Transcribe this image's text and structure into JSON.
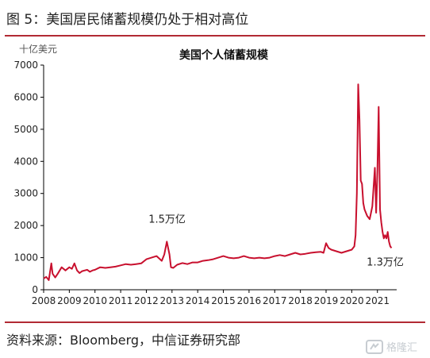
{
  "header": {
    "figure_title": "图 5：美国居民储蓄规模仍处于相对高位"
  },
  "footer": {
    "source": "资料来源：Bloomberg，中信证券研究部",
    "watermark_text": "格隆汇"
  },
  "colors": {
    "accent": "#b22a33",
    "series": "#c8102e",
    "axis": "#000000",
    "text": "#222222"
  },
  "chart_data": {
    "type": "line",
    "title": "美国个人储蓄规模",
    "ylabel": "十亿美元",
    "xlabel": "",
    "ylim": [
      0,
      7000
    ],
    "xlim": [
      2008.0,
      2021.75
    ],
    "grid": false,
    "legend": "none",
    "y_ticks": [
      "0",
      "1000",
      "2000",
      "3000",
      "4000",
      "5000",
      "6000",
      "7000"
    ],
    "x_ticks": [
      "2008",
      "2009",
      "2010",
      "2011",
      "2012",
      "2013",
      "2014",
      "2015",
      "2016",
      "2017",
      "2018",
      "2019",
      "2020",
      "2021"
    ],
    "annotations": [
      {
        "text": "1.5万亿",
        "x": 2012.9,
        "y": 1500
      },
      {
        "text": "1.3万亿",
        "x": 2021.55,
        "y": 1300
      }
    ],
    "series": [
      {
        "x": [
          2008.0,
          2008.1,
          2008.2,
          2008.3,
          2008.35,
          2008.45,
          2008.55,
          2008.7,
          2008.85,
          2009.0,
          2009.1,
          2009.2,
          2009.3,
          2009.4,
          2009.5,
          2009.6,
          2009.7,
          2009.8,
          2009.9,
          2010.0,
          2010.2,
          2010.4,
          2010.6,
          2010.8,
          2011.0,
          2011.2,
          2011.4,
          2011.6,
          2011.8,
          2012.0,
          2012.2,
          2012.4,
          2012.6,
          2012.7,
          2012.8,
          2012.9,
          2012.96,
          2013.05,
          2013.2,
          2013.4,
          2013.6,
          2013.8,
          2014.0,
          2014.2,
          2014.4,
          2014.6,
          2014.8,
          2015.0,
          2015.2,
          2015.4,
          2015.6,
          2015.8,
          2016.0,
          2016.2,
          2016.4,
          2016.6,
          2016.8,
          2017.0,
          2017.2,
          2017.4,
          2017.6,
          2017.8,
          2018.0,
          2018.2,
          2018.4,
          2018.6,
          2018.8,
          2018.9,
          2019.0,
          2019.1,
          2019.2,
          2019.4,
          2019.6,
          2019.8,
          2020.0,
          2020.1,
          2020.15,
          2020.2,
          2020.25,
          2020.3,
          2020.35,
          2020.4,
          2020.45,
          2020.5,
          2020.6,
          2020.7,
          2020.8,
          2020.9,
          2020.95,
          2021.0,
          2021.05,
          2021.1,
          2021.15,
          2021.2,
          2021.25,
          2021.3,
          2021.35,
          2021.4,
          2021.45,
          2021.5,
          2021.55
        ],
        "y": [
          350,
          400,
          300,
          820,
          500,
          380,
          500,
          700,
          600,
          700,
          650,
          820,
          600,
          520,
          580,
          600,
          620,
          560,
          600,
          620,
          700,
          680,
          700,
          720,
          760,
          800,
          780,
          800,
          820,
          950,
          1000,
          1050,
          900,
          1100,
          1500,
          1100,
          700,
          680,
          780,
          830,
          800,
          850,
          850,
          900,
          920,
          950,
          1000,
          1050,
          1000,
          980,
          1000,
          1050,
          1000,
          980,
          1000,
          980,
          1000,
          1050,
          1080,
          1050,
          1100,
          1150,
          1100,
          1120,
          1150,
          1170,
          1180,
          1150,
          1450,
          1300,
          1250,
          1200,
          1150,
          1200,
          1250,
          1350,
          1700,
          3000,
          6400,
          5300,
          3400,
          3300,
          2700,
          2500,
          2300,
          2200,
          2600,
          3800,
          2400,
          3700,
          5700,
          2500,
          2100,
          1800,
          1600,
          1700,
          1600,
          1800,
          1500,
          1350,
          1300
        ]
      }
    ]
  }
}
